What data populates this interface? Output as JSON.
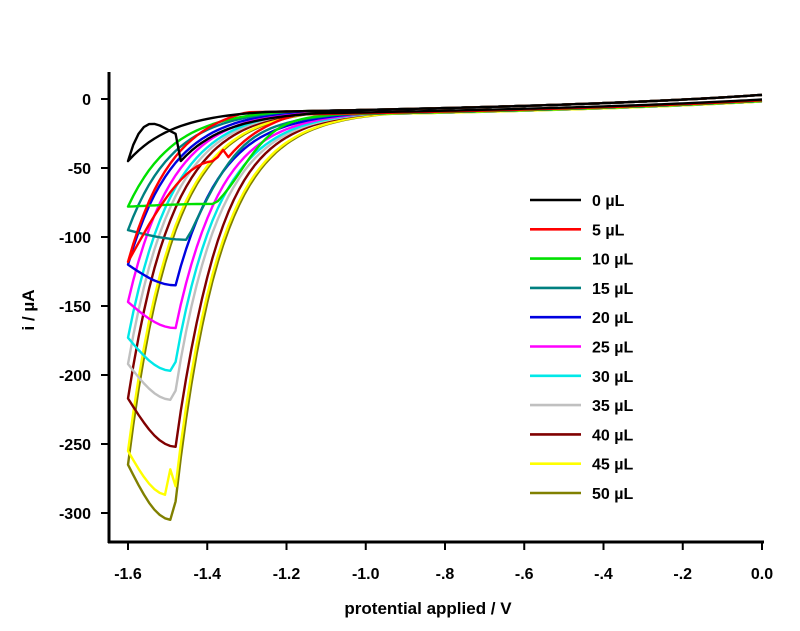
{
  "chart_data": {
    "type": "line",
    "title": "",
    "xlabel": "protential applied / V",
    "ylabel": "i / µA",
    "xlim": [
      -1.6,
      0.0
    ],
    "ylim": [
      -320,
      10
    ],
    "x_ticks": [
      -1.6,
      -1.4,
      -1.2,
      -1.0,
      -0.8,
      -0.6,
      -0.4,
      -0.2,
      0.0
    ],
    "x_tick_labels": [
      "-1.6",
      "-1.4",
      "-1.2",
      "-1.0",
      "-.8",
      "-.6",
      "-.4",
      "-.2",
      "0.0"
    ],
    "y_ticks": [
      0,
      -50,
      -100,
      -150,
      -200,
      -250,
      -300
    ],
    "y_tick_labels": [
      "0",
      "-50",
      "-100",
      "-150",
      "-200",
      "-250",
      "-300"
    ],
    "grid": false,
    "legend_position": "center-right",
    "series": [
      {
        "name": "0 µL",
        "color": "#000000",
        "onset": -1.25,
        "end_current": -45,
        "peak_current": -45,
        "peak_potential": -1.6,
        "return_offset": -5
      },
      {
        "name": "5 µL",
        "color": "#ff0000",
        "onset": -1.3,
        "end_current": -118,
        "peak_current": -45,
        "peak_potential": -1.38,
        "return_offset": -8
      },
      {
        "name": "10 µL",
        "color": "#00e000",
        "onset": -1.2,
        "end_current": -78,
        "peak_current": -76,
        "peak_potential": -1.38,
        "return_offset": -10
      },
      {
        "name": "15 µL",
        "color": "#008080",
        "onset": -1.18,
        "end_current": -95,
        "peak_current": -102,
        "peak_potential": -1.45,
        "return_offset": -10
      },
      {
        "name": "20 µL",
        "color": "#0000e0",
        "onset": -1.15,
        "end_current": -120,
        "peak_current": -135,
        "peak_potential": -1.48,
        "return_offset": -10
      },
      {
        "name": "25 µL",
        "color": "#ff00ff",
        "onset": -1.13,
        "end_current": -147,
        "peak_current": -166,
        "peak_potential": -1.48,
        "return_offset": -10
      },
      {
        "name": "30 µL",
        "color": "#00e8e8",
        "onset": -1.12,
        "end_current": -173,
        "peak_current": -197,
        "peak_potential": -1.49,
        "return_offset": -10
      },
      {
        "name": "35 µL",
        "color": "#c0c0c0",
        "onset": -1.11,
        "end_current": -192,
        "peak_current": -218,
        "peak_potential": -1.49,
        "return_offset": -10
      },
      {
        "name": "40 µL",
        "color": "#800000",
        "onset": -1.1,
        "end_current": -217,
        "peak_current": -252,
        "peak_potential": -1.48,
        "return_offset": -10
      },
      {
        "name": "45 µL",
        "color": "#ffff00",
        "onset": -1.08,
        "end_current": -255,
        "peak_current": -287,
        "peak_potential": -1.5,
        "return_offset": -12
      },
      {
        "name": "50 µL",
        "color": "#808000",
        "onset": -1.07,
        "end_current": -265,
        "peak_current": -305,
        "peak_potential": -1.49,
        "return_offset": -12
      }
    ]
  }
}
